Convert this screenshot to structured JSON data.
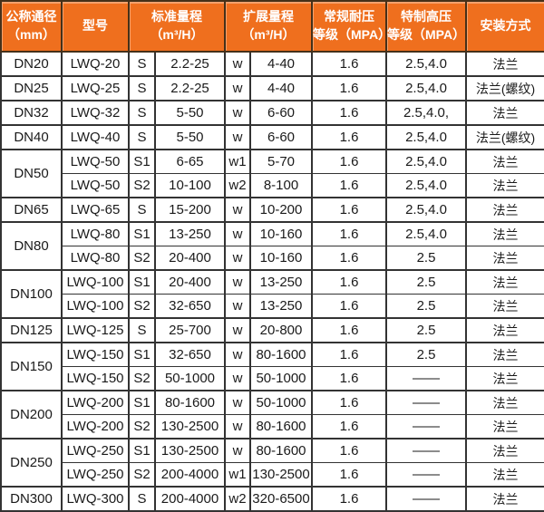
{
  "table": {
    "headers": {
      "diameter": {
        "line1": "公称通径",
        "line2": "（mm）"
      },
      "model": "型号",
      "standard_range": {
        "line1": "标准量程",
        "line2": "（m³/H）"
      },
      "extended_range": {
        "line1": "扩展量程",
        "line2": "（m³/H）"
      },
      "normal_pressure": {
        "line1": "常规耐压",
        "line2": "等级（MPA）"
      },
      "high_pressure": {
        "line1": "特制高压",
        "line2": "等级（MPA）"
      },
      "installation": "安装方式"
    },
    "rows": [
      {
        "dn": "DN20",
        "dn_rowspan": 1,
        "group_start": true,
        "model": "LWQ-20",
        "std_code": "S",
        "std_range": "2.2-25",
        "ext_code": "w",
        "ext_range": "4-40",
        "normal_pressure": "1.6",
        "high_pressure": "2.5,4.0",
        "installation": "法兰"
      },
      {
        "dn": "DN25",
        "dn_rowspan": 1,
        "group_start": true,
        "model": "LWQ-25",
        "std_code": "S",
        "std_range": "2.2-25",
        "ext_code": "w",
        "ext_range": "4-40",
        "normal_pressure": "1.6",
        "high_pressure": "2.5,4.0",
        "installation": "法兰(螺纹)"
      },
      {
        "dn": "DN32",
        "dn_rowspan": 1,
        "group_start": true,
        "model": "LWQ-32",
        "std_code": "S",
        "std_range": "5-50",
        "ext_code": "w",
        "ext_range": "6-60",
        "normal_pressure": "1.6",
        "high_pressure": "2.5,4.0,",
        "installation": "法兰"
      },
      {
        "dn": "DN40",
        "dn_rowspan": 1,
        "group_start": true,
        "model": "LWQ-40",
        "std_code": "S",
        "std_range": "5-50",
        "ext_code": "w",
        "ext_range": "6-60",
        "normal_pressure": "1.6",
        "high_pressure": "2.5,4.0",
        "installation": "法兰(螺纹)"
      },
      {
        "dn": "DN50",
        "dn_rowspan": 2,
        "group_start": true,
        "model": "LWQ-50",
        "std_code": "S1",
        "std_range": "6-65",
        "ext_code": "w1",
        "ext_range": "5-70",
        "normal_pressure": "1.6",
        "high_pressure": "2.5,4.0",
        "installation": "法兰"
      },
      {
        "dn": null,
        "dn_rowspan": 0,
        "group_start": false,
        "model": "LWQ-50",
        "std_code": "S2",
        "std_range": "10-100",
        "ext_code": "w2",
        "ext_range": "8-100",
        "normal_pressure": "1.6",
        "high_pressure": "2.5,4.0",
        "installation": "法兰"
      },
      {
        "dn": "DN65",
        "dn_rowspan": 1,
        "group_start": true,
        "model": "LWQ-65",
        "std_code": "S",
        "std_range": "15-200",
        "ext_code": "w",
        "ext_range": "10-200",
        "normal_pressure": "1.6",
        "high_pressure": "2.5,4.0",
        "installation": "法兰"
      },
      {
        "dn": "DN80",
        "dn_rowspan": 2,
        "group_start": true,
        "model": "LWQ-80",
        "std_code": "S1",
        "std_range": "13-250",
        "ext_code": "w",
        "ext_range": "10-160",
        "normal_pressure": "1.6",
        "high_pressure": "2.5,4.0",
        "installation": "法兰"
      },
      {
        "dn": null,
        "dn_rowspan": 0,
        "group_start": false,
        "model": "LWQ-80",
        "std_code": "S2",
        "std_range": "20-400",
        "ext_code": "w",
        "ext_range": "10-160",
        "normal_pressure": "1.6",
        "high_pressure": "2.5",
        "installation": "法兰"
      },
      {
        "dn": "DN100",
        "dn_rowspan": 2,
        "group_start": true,
        "model": "LWQ-100",
        "std_code": "S1",
        "std_range": "20-400",
        "ext_code": "w",
        "ext_range": "13-250",
        "normal_pressure": "1.6",
        "high_pressure": "2.5",
        "installation": "法兰"
      },
      {
        "dn": null,
        "dn_rowspan": 0,
        "group_start": false,
        "model": "LWQ-100",
        "std_code": "S2",
        "std_range": "32-650",
        "ext_code": "w",
        "ext_range": "13-250",
        "normal_pressure": "1.6",
        "high_pressure": "2.5",
        "installation": "法兰"
      },
      {
        "dn": "DN125",
        "dn_rowspan": 1,
        "group_start": true,
        "model": "LWQ-125",
        "std_code": "S",
        "std_range": "25-700",
        "ext_code": "w",
        "ext_range": "20-800",
        "normal_pressure": "1.6",
        "high_pressure": "2.5",
        "installation": "法兰"
      },
      {
        "dn": "DN150",
        "dn_rowspan": 2,
        "group_start": true,
        "model": "LWQ-150",
        "std_code": "S1",
        "std_range": "32-650",
        "ext_code": "w",
        "ext_range": "80-1600",
        "normal_pressure": "1.6",
        "high_pressure": "2.5",
        "installation": "法兰"
      },
      {
        "dn": null,
        "dn_rowspan": 0,
        "group_start": false,
        "model": "LWQ-150",
        "std_code": "S2",
        "std_range": "50-1000",
        "ext_code": "w",
        "ext_range": "50-1000",
        "normal_pressure": "1.6",
        "high_pressure": "——",
        "installation": "法兰"
      },
      {
        "dn": "DN200",
        "dn_rowspan": 2,
        "group_start": true,
        "model": "LWQ-200",
        "std_code": "S1",
        "std_range": "80-1600",
        "ext_code": "w",
        "ext_range": "50-1000",
        "normal_pressure": "1.6",
        "high_pressure": "——",
        "installation": "法兰"
      },
      {
        "dn": null,
        "dn_rowspan": 0,
        "group_start": false,
        "model": "LWQ-200",
        "std_code": "S2",
        "std_range": "130-2500",
        "ext_code": "w",
        "ext_range": "80-1600",
        "normal_pressure": "1.6",
        "high_pressure": "——",
        "installation": "法兰"
      },
      {
        "dn": "DN250",
        "dn_rowspan": 2,
        "group_start": true,
        "model": "LWQ-250",
        "std_code": "S1",
        "std_range": "130-2500",
        "ext_code": "w",
        "ext_range": "80-1600",
        "normal_pressure": "1.6",
        "high_pressure": "——",
        "installation": "法兰"
      },
      {
        "dn": null,
        "dn_rowspan": 0,
        "group_start": false,
        "model": "LWQ-250",
        "std_code": "S2",
        "std_range": "200-4000",
        "ext_code": "w1",
        "ext_range": "130-2500",
        "normal_pressure": "1.6",
        "high_pressure": "——",
        "installation": "法兰"
      },
      {
        "dn": "DN300",
        "dn_rowspan": 1,
        "group_start": true,
        "model": "LWQ-300",
        "std_code": "S",
        "std_range": "200-4000",
        "ext_code": "w2",
        "ext_range": "320-6500",
        "normal_pressure": "1.6",
        "high_pressure": "——",
        "installation": "法兰"
      }
    ]
  },
  "colors": {
    "header_bg": "#EF6F1E",
    "header_border": "#453019",
    "header_text": "#FFFFFF",
    "grid_border": "#333333",
    "text": "#1A1A1A",
    "bg": "#FFFFFF"
  }
}
